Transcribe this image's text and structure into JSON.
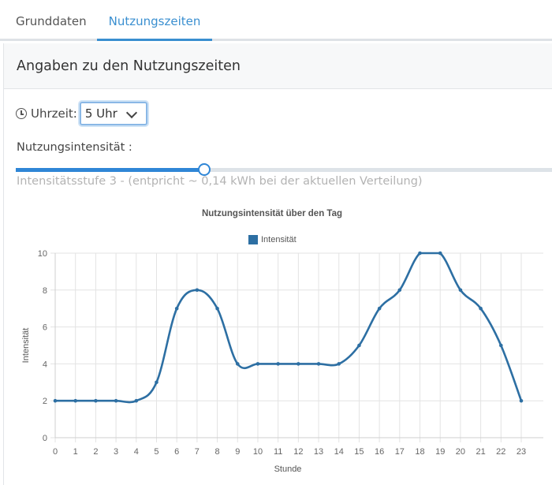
{
  "tabs": [
    {
      "label": "Grunddaten",
      "active": false
    },
    {
      "label": "Nutzungszeiten",
      "active": true
    }
  ],
  "panel": {
    "title": "Angaben zu den Nutzungszeiten"
  },
  "time": {
    "icon": "clock-icon",
    "label": "Uhrzeit:",
    "selected": "5 Uhr"
  },
  "intensity": {
    "label": "Nutzungsintensität :",
    "slider_value": 3,
    "help_text": "Intensitätsstufe 3 - (entpricht ~ 0,14 kWh bei der aktuellen Verteilung)"
  },
  "colors": {
    "accent": "#2f86d6",
    "series": "#2d6fa3"
  },
  "chart_data": {
    "type": "line",
    "title": "Nutzungsintensität über den Tag",
    "legend": [
      "Intensität"
    ],
    "legend_position": "top",
    "xlabel": "Stunde",
    "ylabel": "Intensität",
    "ylim": [
      0,
      10
    ],
    "yticks": [
      0,
      2,
      4,
      6,
      8,
      10
    ],
    "grid": true,
    "categories": [
      0,
      1,
      2,
      3,
      4,
      5,
      6,
      7,
      8,
      9,
      10,
      11,
      12,
      13,
      14,
      15,
      16,
      17,
      18,
      19,
      20,
      21,
      22,
      23
    ],
    "series": [
      {
        "name": "Intensität",
        "values": [
          2,
          2,
          2,
          2,
          2,
          3,
          7,
          8,
          7,
          4,
          4,
          4,
          4,
          4,
          4,
          5,
          7,
          8,
          10,
          10,
          8,
          7,
          5,
          2
        ]
      }
    ]
  }
}
